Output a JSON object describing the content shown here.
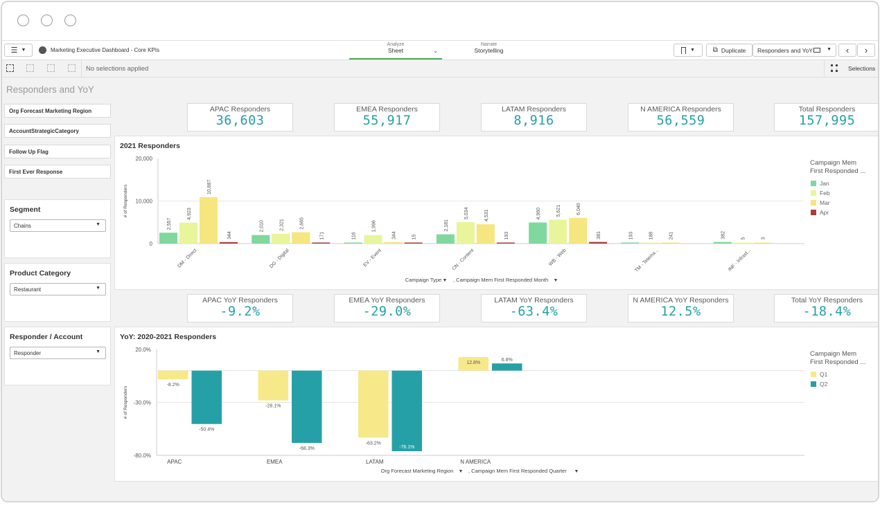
{
  "app": {
    "title": "Marketing Executive Dashboard - Core KPIs",
    "analyze_label": "Analyze",
    "sheet_label": "Sheet",
    "narrate_label": "Narrate",
    "storytelling_label": "Storytelling",
    "duplicate_label": "Duplicate",
    "current_sheet": "Responders and YoY",
    "no_selections": "No selections applied",
    "selections_label": "Selections"
  },
  "sheet_title": "Responders and YoY",
  "filters": [
    "Org Forecast Marketing Region",
    "AccountStrategicCategory",
    "Follow Up Flag",
    "First Ever Response"
  ],
  "dropdowns": [
    {
      "title": "Segment",
      "value": "Chains"
    },
    {
      "title": "Product Category",
      "value": "Restaurant"
    },
    {
      "title": "Responder / Account",
      "value": "Responder"
    }
  ],
  "kpis_responders": [
    {
      "label": "APAC Responders",
      "value": "36,603"
    },
    {
      "label": "EMEA Responders",
      "value": "55,917"
    },
    {
      "label": "LATAM Responders",
      "value": "8,916"
    },
    {
      "label": "N AMERICA Responders",
      "value": "56,559"
    },
    {
      "label": "Total Responders",
      "value": "157,995"
    }
  ],
  "kpis_yoy": [
    {
      "label": "APAC YoY Responders",
      "value": "-9.2%"
    },
    {
      "label": "EMEA YoY Responders",
      "value": "-29.0%"
    },
    {
      "label": "LATAM YoY Responders",
      "value": "-63.4%"
    },
    {
      "label": "N AMERICA YoY Responders",
      "value": "12.5%"
    },
    {
      "label": "Total YoY Responders",
      "value": "-18.4%"
    }
  ],
  "colors": {
    "jan": "#7fd89d",
    "feb": "#e9f59a",
    "mar": "#f5e67f",
    "apr": "#b03a3a",
    "q1": "#f7e98a",
    "q2": "#26a0a7",
    "kpi": "#26a0a7"
  },
  "chart_data": [
    {
      "type": "bar",
      "title": "2021 Responders",
      "ylabel": "# of Responders",
      "ylim": [
        0,
        20000
      ],
      "yticks": [
        "20,000",
        "10,000",
        "0"
      ],
      "categories": [
        "DM - Direct",
        "DG - Digital",
        "EV - Event",
        "CN - Content",
        "WB - Web",
        "TM - Telema...",
        "INF - Infrast..."
      ],
      "legend_title": "Campaign Mem First Responded ...",
      "series": [
        {
          "name": "Jan",
          "values": [
            2557,
            2010,
            116,
            2181,
            4960,
            193,
            382
          ]
        },
        {
          "name": "Feb",
          "values": [
            4923,
            2321,
            1996,
            5034,
            5621,
            188,
            5
          ]
        },
        {
          "name": "Mar",
          "values": [
            10887,
            2665,
            344,
            4531,
            6040,
            241,
            3
          ]
        },
        {
          "name": "Apr",
          "values": [
            344,
            171,
            15,
            193,
            381,
            null,
            null
          ]
        }
      ],
      "labels": [
        [
          "2,557",
          "2,010",
          "116",
          "2,181",
          "4,960",
          "193",
          "382"
        ],
        [
          "4,923",
          "2,321",
          "1,996",
          "5,034",
          "5,621",
          "188",
          "5"
        ],
        [
          "10,887",
          "2,665",
          "344",
          "4,531",
          "6,040",
          "241",
          "3"
        ],
        [
          "344",
          "171",
          "15",
          "193",
          "381",
          "",
          ""
        ]
      ],
      "xlabel": "Campaign Type",
      "xlabel2": ", Campaign Mem First Responded Month"
    },
    {
      "type": "bar",
      "title": "YoY: 2020-2021 Responders",
      "ylabel": "# of Responders",
      "ylim": [
        -80,
        20
      ],
      "yticks": [
        "20.0%",
        "-30.0%",
        "-80.0%"
      ],
      "categories": [
        "APAC",
        "EMEA",
        "LATAM",
        "N AMERICA"
      ],
      "legend_title": "Campaign Mem First Responded ...",
      "series": [
        {
          "name": "Q1",
          "values": [
            -8.2,
            -28.1,
            -63.2,
            12.8
          ]
        },
        {
          "name": "Q2",
          "values": [
            -50.4,
            -68.3,
            -76.1,
            6.8
          ]
        }
      ],
      "labels": [
        [
          "-8.2%",
          "-28.1%",
          "-63.2%",
          "12.8%"
        ],
        [
          "-50.4%",
          "-68.3%",
          "-76.1%",
          "6.8%"
        ]
      ],
      "xlabel": "Org Forecast Marketing Region",
      "xlabel2": ", Campaign Mem First Responded Quarter"
    }
  ]
}
